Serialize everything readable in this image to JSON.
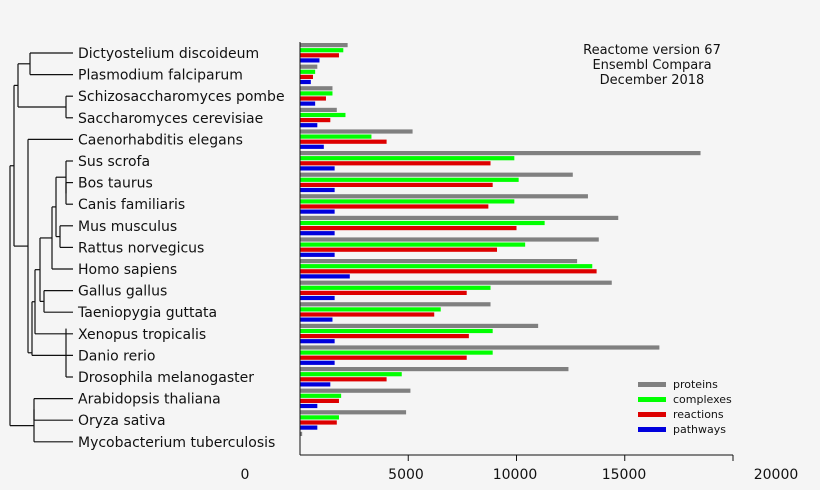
{
  "chart_data": {
    "type": "bar",
    "orientation": "horizontal",
    "note_lines": [
      "Reactome version 67",
      "Ensembl Compara",
      "December 2018"
    ],
    "categories": [
      "Dictyostelium discoideum",
      "Plasmodium falciparum",
      "Schizosaccharomyces pombe",
      "Saccharomyces cerevisiae",
      "Caenorhabditis elegans",
      "Sus scrofa",
      "Bos taurus",
      "Canis familiaris",
      "Mus musculus",
      "Rattus norvegicus",
      "Homo sapiens",
      "Gallus gallus",
      "Taeniopygia guttata",
      "Xenopus tropicalis",
      "Danio rerio",
      "Drosophila melanogaster",
      "Arabidopsis thaliana",
      "Oryza sativa",
      "Mycobacterium tuberculosis"
    ],
    "series": [
      {
        "name": "proteins",
        "color": "#808080",
        "values": [
          2200,
          800,
          1500,
          1700,
          5200,
          18500,
          12600,
          13300,
          14700,
          13800,
          12800,
          14400,
          8800,
          11000,
          16600,
          12400,
          5100,
          4900,
          100
        ]
      },
      {
        "name": "complexes",
        "color": "#00ff00",
        "values": [
          2000,
          700,
          1500,
          2100,
          3300,
          9900,
          10100,
          9900,
          11300,
          10400,
          13500,
          8800,
          6500,
          8900,
          8900,
          4700,
          1900,
          1800,
          0
        ]
      },
      {
        "name": "reactions",
        "color": "#dd0000",
        "values": [
          1800,
          600,
          1200,
          1400,
          4000,
          8800,
          8900,
          8700,
          10000,
          9100,
          13700,
          7700,
          6200,
          7800,
          7700,
          4000,
          1800,
          1700,
          0
        ]
      },
      {
        "name": "pathways",
        "color": "#0000dd",
        "values": [
          900,
          500,
          700,
          800,
          1100,
          1600,
          1600,
          1600,
          1600,
          1600,
          2300,
          1600,
          1500,
          1600,
          1600,
          1400,
          800,
          800,
          0
        ]
      }
    ],
    "x_ticks": [
      0,
      5000,
      10000,
      15000,
      20000
    ],
    "xlim": [
      0,
      20000
    ],
    "grid": false,
    "legend_position": "bottom-right"
  }
}
